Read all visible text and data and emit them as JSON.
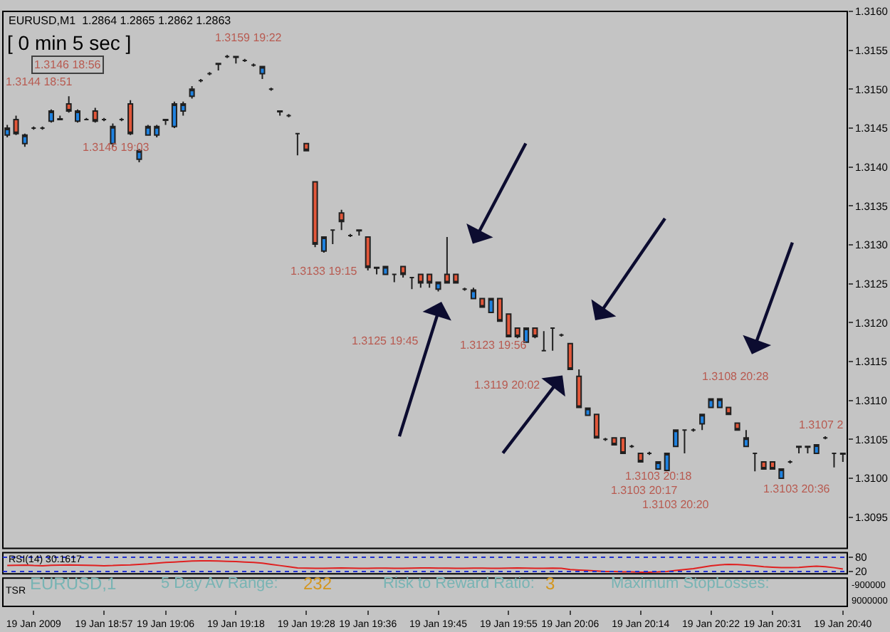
{
  "chart_data": [
    {
      "type": "candlestick",
      "categories": [
        null,
        null,
        null,
        "19 Jan 2009",
        null,
        null,
        null,
        null,
        null,
        null,
        null,
        "19 Jan 18:57",
        null,
        null,
        null,
        null,
        null,
        null,
        "19 Jan 19:06",
        null,
        null,
        null,
        null,
        null,
        null,
        null,
        "19 Jan 19:18",
        null,
        null,
        null,
        null,
        null,
        null,
        null,
        "19 Jan 19:28",
        null,
        null,
        null,
        null,
        null,
        null,
        "19 Jan 19:36",
        null,
        null,
        null,
        null,
        null,
        null,
        null,
        "19 Jan 19:45",
        null,
        null,
        null,
        null,
        null,
        null,
        null,
        "19 Jan 19:55",
        null,
        null,
        null,
        null,
        null,
        null,
        "19 Jan 20:06",
        null,
        null,
        null,
        null,
        null,
        null,
        null,
        "19 Jan 20:14",
        null,
        null,
        null,
        null,
        null,
        null,
        null,
        "19 Jan 20:22",
        null,
        null,
        null,
        null,
        null,
        null,
        "19 Jan 20:31",
        null,
        null,
        null,
        null,
        null,
        null,
        null,
        "19 Jan 20:40"
      ],
      "ohlc": [
        [
          1.31441,
          1.31454,
          1.31438,
          1.3145
        ],
        [
          1.31461,
          1.31466,
          1.31441,
          1.31443
        ],
        [
          1.3143,
          1.31443,
          1.31426,
          1.31441
        ],
        [
          1.3145,
          1.31452,
          1.31448,
          1.3145
        ],
        [
          1.3145,
          1.31452,
          1.31448,
          1.3145
        ],
        [
          1.31459,
          1.31474,
          1.31457,
          1.31472
        ],
        [
          1.31462,
          1.31466,
          1.31461,
          1.31461
        ],
        [
          1.31481,
          1.31491,
          1.3147,
          1.31472
        ],
        [
          1.31459,
          1.31474,
          1.31457,
          1.31472
        ],
        [
          1.31461,
          1.31463,
          1.31461,
          1.31461
        ],
        [
          1.31472,
          1.31476,
          1.31457,
          1.31459
        ],
        [
          1.31461,
          1.31463,
          1.31459,
          1.31461
        ],
        [
          1.3143,
          1.31456,
          1.31426,
          1.31452
        ],
        [
          1.31461,
          1.31463,
          1.31459,
          1.31461
        ],
        [
          1.31481,
          1.31486,
          1.31441,
          1.31443
        ],
        [
          1.3141,
          1.31423,
          1.31406,
          1.31421
        ],
        [
          1.31441,
          1.31454,
          1.31441,
          1.31452
        ],
        [
          1.31441,
          1.31454,
          1.31438,
          1.31452
        ],
        [
          1.31461,
          1.31461,
          1.31454,
          1.3146
        ],
        [
          1.31452,
          1.31484,
          1.3145,
          1.31481
        ],
        [
          1.31472,
          1.31484,
          1.31466,
          1.31481
        ],
        [
          1.31491,
          1.31504,
          1.31488,
          1.315
        ],
        [
          1.31511,
          1.31513,
          1.31509,
          1.31511
        ],
        [
          1.3152,
          1.31522,
          1.31518,
          1.3152
        ],
        [
          1.31533,
          1.31533,
          1.31524,
          1.31532
        ],
        [
          1.31542,
          1.31544,
          1.3154,
          1.31542
        ],
        [
          1.31542,
          1.31542,
          1.31533,
          1.31541
        ],
        [
          1.31537,
          1.31539,
          1.31535,
          1.31537
        ],
        [
          1.31531,
          1.31533,
          1.31529,
          1.31531
        ],
        [
          1.3152,
          1.31529,
          1.31513,
          1.31529
        ],
        [
          1.315,
          1.31502,
          1.31498,
          1.315
        ],
        [
          1.31472,
          1.31472,
          1.31466,
          1.31471
        ],
        [
          1.31466,
          1.31468,
          1.31464,
          1.31466
        ],
        [
          1.31443,
          1.31443,
          1.31415,
          1.31443
        ],
        [
          1.3143,
          1.3143,
          1.31421,
          1.31421
        ],
        [
          1.31381,
          1.31381,
          1.31297,
          1.31301
        ],
        [
          1.31292,
          1.3131,
          1.3129,
          1.3131
        ],
        [
          1.31319,
          1.31319,
          1.31301,
          1.31319
        ],
        [
          1.31341,
          1.31345,
          1.31319,
          1.3133
        ],
        [
          1.31312,
          1.31314,
          1.3131,
          1.31312
        ],
        [
          1.31319,
          1.31319,
          1.31312,
          1.31318
        ],
        [
          1.3131,
          1.3131,
          1.31267,
          1.31271
        ],
        [
          1.31271,
          1.31271,
          1.31262,
          1.3127
        ],
        [
          1.31262,
          1.31272,
          1.31262,
          1.31272
        ],
        [
          1.31262,
          1.31262,
          1.31252,
          1.31262
        ],
        [
          1.31272,
          1.31272,
          1.31258,
          1.31262
        ],
        [
          1.31258,
          1.31258,
          1.31243,
          1.31258
        ],
        [
          1.31262,
          1.31262,
          1.31245,
          1.31251
        ],
        [
          1.31262,
          1.31262,
          1.31245,
          1.31251
        ],
        [
          1.31243,
          1.31252,
          1.3124,
          1.31252
        ],
        [
          1.31262,
          1.3131,
          1.31251,
          1.31251
        ],
        [
          1.31262,
          1.31262,
          1.31251,
          1.31251
        ],
        [
          1.31243,
          1.31245,
          1.31241,
          1.31243
        ],
        [
          1.31231,
          1.31245,
          1.31231,
          1.31242
        ],
        [
          1.31231,
          1.31231,
          1.3122,
          1.3122
        ],
        [
          1.31213,
          1.31231,
          1.31213,
          1.31231
        ],
        [
          1.31231,
          1.31231,
          1.31202,
          1.31202
        ],
        [
          1.31211,
          1.31211,
          1.31182,
          1.31182
        ],
        [
          1.31193,
          1.31193,
          1.3118,
          1.31182
        ],
        [
          1.31175,
          1.31193,
          1.31175,
          1.31193
        ],
        [
          1.31193,
          1.31193,
          1.3118,
          1.31182
        ],
        [
          1.31164,
          1.31189,
          1.31164,
          1.31164
        ],
        [
          1.31193,
          1.31193,
          1.31164,
          1.31193
        ],
        [
          1.31184,
          1.31186,
          1.31182,
          1.31184
        ],
        [
          1.31173,
          1.31173,
          1.3114,
          1.3114
        ],
        [
          1.31131,
          1.3114,
          1.31091,
          1.31091
        ],
        [
          1.31081,
          1.3109,
          1.31081,
          1.3109
        ],
        [
          1.31082,
          1.31082,
          1.31052,
          1.31052
        ],
        [
          1.3105,
          1.31052,
          1.31048,
          1.3105
        ],
        [
          1.31052,
          1.31052,
          1.31043,
          1.31043
        ],
        [
          1.31052,
          1.31052,
          1.31032,
          1.31032
        ],
        [
          1.31041,
          1.31043,
          1.31039,
          1.31041
        ],
        [
          1.31032,
          1.31032,
          1.31021,
          1.31021
        ],
        [
          1.31032,
          1.31034,
          1.3103,
          1.31032
        ],
        [
          1.31012,
          1.31021,
          1.31012,
          1.31021
        ],
        [
          1.3101,
          1.31032,
          1.3101,
          1.31032
        ],
        [
          1.31041,
          1.31062,
          1.31041,
          1.31062
        ],
        [
          1.31062,
          1.31062,
          1.31032,
          1.31062
        ],
        [
          1.31062,
          1.31064,
          1.3106,
          1.31062
        ],
        [
          1.3107,
          1.31082,
          1.31062,
          1.31082
        ],
        [
          1.31091,
          1.31102,
          1.31091,
          1.31102
        ],
        [
          1.31091,
          1.31102,
          1.31091,
          1.31102
        ],
        [
          1.31091,
          1.31091,
          1.31082,
          1.31082
        ],
        [
          1.31071,
          1.31071,
          1.31062,
          1.31062
        ],
        [
          1.31041,
          1.31062,
          1.31041,
          1.31052
        ],
        [
          1.31032,
          1.31032,
          1.31009,
          1.31032
        ],
        [
          1.31021,
          1.31021,
          1.31012,
          1.31012
        ],
        [
          1.31021,
          1.31021,
          1.31012,
          1.31012
        ],
        [
          1.31,
          1.31012,
          1.31,
          1.31012
        ],
        [
          1.31021,
          1.31023,
          1.31019,
          1.31021
        ],
        [
          1.31041,
          1.31041,
          1.31032,
          1.3104
        ],
        [
          1.31041,
          1.31041,
          1.31032,
          1.3104
        ],
        [
          1.31032,
          1.31043,
          1.31032,
          1.31043
        ],
        [
          1.31052,
          1.31054,
          1.3105,
          1.31052
        ],
        [
          1.31032,
          1.31032,
          1.31014,
          1.31032
        ],
        [
          1.31032,
          1.31032,
          1.31021,
          1.31031
        ]
      ],
      "colors": [
        "#1f82e0",
        "#e2573a",
        "#1f82e0",
        "#202020",
        "#202020",
        "#1f82e0",
        "#202020",
        "#e2573a",
        "#1f82e0",
        "#202020",
        "#e2573a",
        "#202020",
        "#1f82e0",
        "#202020",
        "#e2573a",
        "#1f82e0",
        "#1f82e0",
        "#1f82e0",
        "#202020",
        "#1f82e0",
        "#1f82e0",
        "#1f82e0",
        "#202020",
        "#202020",
        "#202020",
        "#202020",
        "#202020",
        "#202020",
        "#202020",
        "#1f82e0",
        "#202020",
        "#202020",
        "#202020",
        "#202020",
        "#e2573a",
        "#e2573a",
        "#1f82e0",
        "#202020",
        "#e2573a",
        "#202020",
        "#202020",
        "#e2573a",
        "#202020",
        "#1f82e0",
        "#202020",
        "#e2573a",
        "#202020",
        "#e2573a",
        "#e2573a",
        "#1f82e0",
        "#e2573a",
        "#e2573a",
        "#202020",
        "#1f82e0",
        "#e2573a",
        "#1f82e0",
        "#e2573a",
        "#e2573a",
        "#e2573a",
        "#1f82e0",
        "#e2573a",
        "#202020",
        "#202020",
        "#202020",
        "#e2573a",
        "#e2573a",
        "#1f82e0",
        "#e2573a",
        "#202020",
        "#e2573a",
        "#e2573a",
        "#202020",
        "#e2573a",
        "#202020",
        "#1f82e0",
        "#1f82e0",
        "#1f82e0",
        "#202020",
        "#202020",
        "#1f82e0",
        "#1f82e0",
        "#1f82e0",
        "#e2573a",
        "#e2573a",
        "#1f82e0",
        "#202020",
        "#e2573a",
        "#e2573a",
        "#1f82e0",
        "#202020",
        "#202020",
        "#202020",
        "#1f82e0",
        "#202020",
        "#202020",
        "#202020"
      ],
      "ylim": [
        1.3091,
        1.316
      ],
      "yticks": [
        {
          "value": 1.3095,
          "label": "1.3095"
        },
        {
          "value": 1.31,
          "label": "1.3100"
        },
        {
          "value": 1.3105,
          "label": "1.3105"
        },
        {
          "value": 1.311,
          "label": "1.3110"
        },
        {
          "value": 1.3115,
          "label": "1.3115"
        },
        {
          "value": 1.312,
          "label": "1.3120"
        },
        {
          "value": 1.3125,
          "label": "1.3125"
        },
        {
          "value": 1.313,
          "label": "1.3130"
        },
        {
          "value": 1.3135,
          "label": "1.3135"
        },
        {
          "value": 1.314,
          "label": "1.3140"
        },
        {
          "value": 1.3145,
          "label": "1.3145"
        },
        {
          "value": 1.315,
          "label": "1.3150"
        },
        {
          "value": 1.3155,
          "label": "1.3155"
        },
        {
          "value": 1.316,
          "label": "1.3160"
        }
      ],
      "grid": false,
      "annotations": [
        "EURUSD,M1  1.2864 1.2865 1.2862 1.2863",
        "[ 0 min 5 sec ]",
        "1.3144 18:51",
        "1.3146 18:56",
        "1.3146 19:03",
        "1.3159 19:22",
        "1.3133 19:15",
        "1.3125 19:45",
        "1.3123 19:56",
        "1.3119 20:02",
        "1.3108 20:28",
        "1.3107 2",
        "1.3103 20:18",
        "1.3103 20:17",
        "1.3103 20:20",
        "1.3103 20:36"
      ]
    },
    {
      "type": "line",
      "tick_labels": "y",
      "series": [
        {
          "color": "#e02020",
          "values": [
            45,
            46,
            47,
            45,
            44,
            46,
            47,
            48,
            47,
            46,
            45,
            44,
            45,
            47,
            48,
            50,
            52,
            55,
            58,
            60,
            62,
            64,
            65,
            65,
            64,
            63,
            62,
            60,
            58,
            55,
            50,
            45,
            40,
            35,
            34,
            33,
            33,
            34,
            35,
            34,
            33,
            33,
            34,
            34,
            33,
            33,
            34,
            35,
            35,
            34,
            34,
            33,
            33,
            34,
            34,
            33,
            33,
            34,
            35,
            34,
            33,
            33,
            34,
            33,
            28,
            26,
            24,
            22,
            20,
            20,
            18,
            18,
            17,
            17,
            18,
            20,
            24,
            28,
            32,
            38,
            44,
            48,
            50,
            49,
            47,
            44,
            40,
            38,
            36,
            36,
            37,
            40,
            42,
            40,
            36,
            30
          ]
        }
      ],
      "ylim": [
        10,
        100
      ],
      "yticks": [
        20,
        80
      ],
      "ref_lines": [
        {
          "axis": "y",
          "value": 80,
          "color": "#2030d0",
          "line_style": "dotted"
        },
        {
          "axis": "y",
          "value": 20,
          "color": "#2030d0",
          "line_style": "dotted"
        }
      ],
      "annotations": [
        "RSI(14) 30.1617"
      ]
    },
    {
      "type": "other",
      "annotations": [
        "TSR",
        "EURUSD,1",
        "5 Day Av Range:",
        "232",
        "Risk to Reward Ratio:",
        "3",
        "Maximum StopLosses:",
        "-900000",
        "9000000"
      ]
    }
  ]
}
